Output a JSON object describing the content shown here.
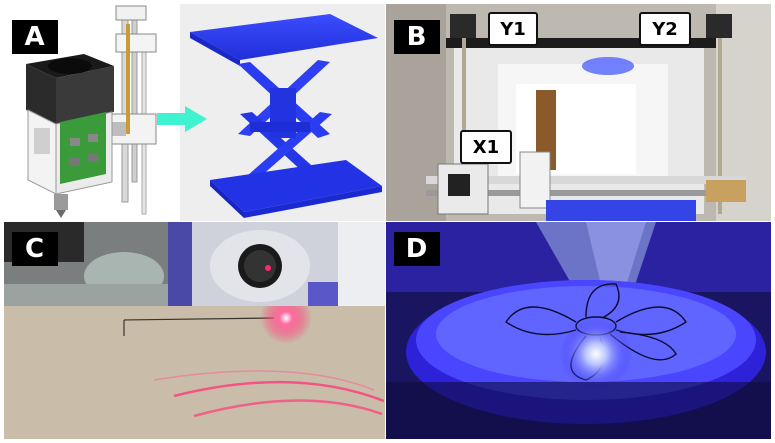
{
  "panels": {
    "a": {
      "label": "A"
    },
    "b": {
      "label": "B",
      "axes": [
        "Y1",
        "Y2",
        "X1"
      ]
    },
    "c": {
      "label": "C"
    },
    "d": {
      "label": "D"
    }
  },
  "colors": {
    "print_blue": "#2a3cf0",
    "arrow_teal": "#3ff2d0",
    "pcb_green": "#3b9a3a",
    "laser_red": "#ff2a6a",
    "uv_blue": "#2a1dff"
  },
  "icons": [
    "arrow-right-icon"
  ]
}
